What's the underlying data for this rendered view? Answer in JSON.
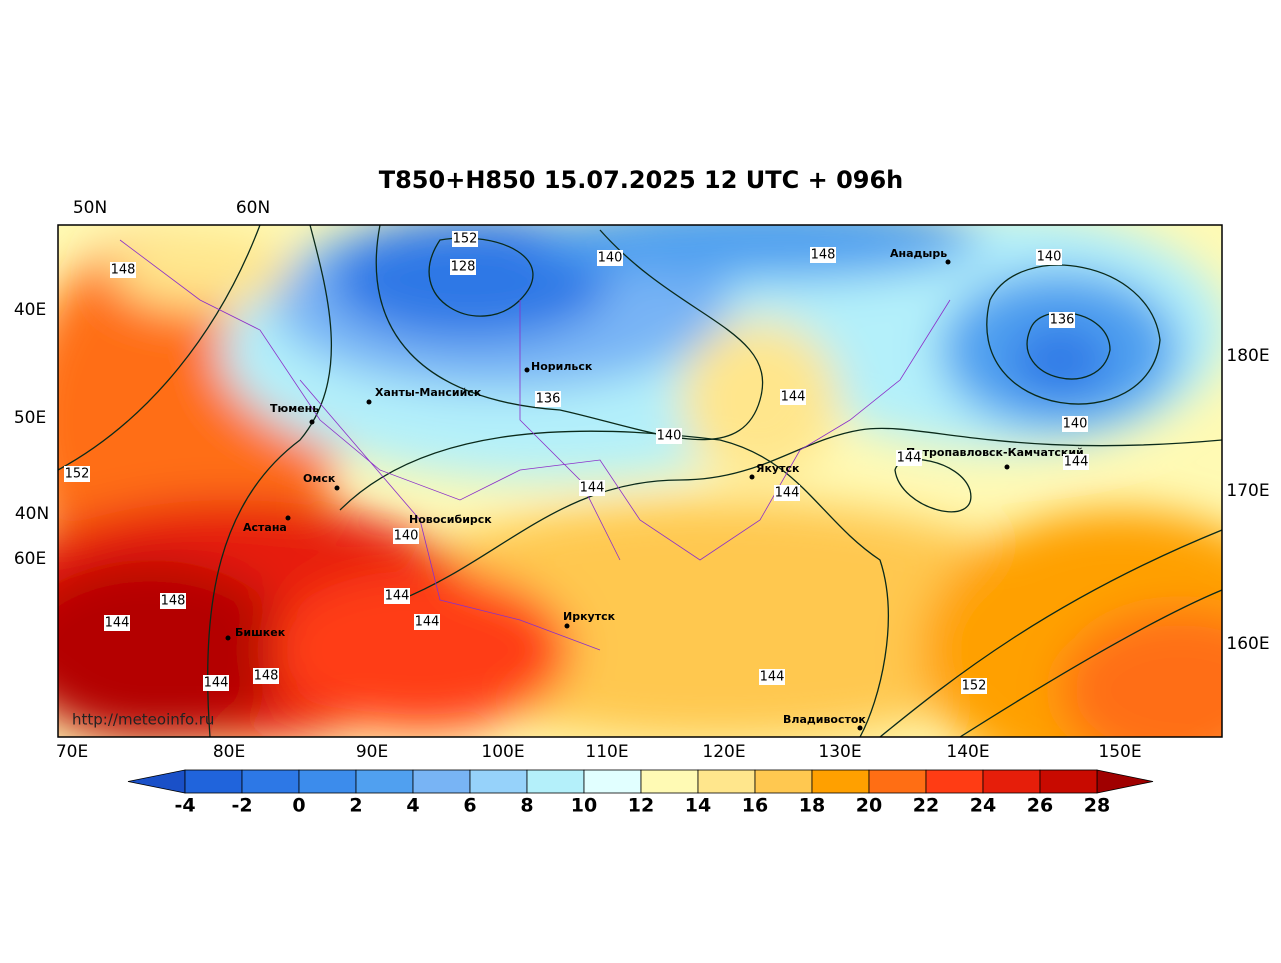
{
  "title": "T850+H850 15.07.2025 12 UTC + 096h",
  "watermark": "http://meteoinfo.ru",
  "lat_labels_top": [
    "50N",
    "60N"
  ],
  "lat_labels_left": [
    "40E",
    "50E",
    "40N",
    "60E"
  ],
  "lat_labels_right": [
    "180E",
    "170E",
    "160E"
  ],
  "lon_labels_bottom": [
    "70E",
    "80E",
    "90E",
    "100E",
    "110E",
    "120E",
    "130E",
    "140E",
    "150E"
  ],
  "cities": [
    "Норильск",
    "Ханты-Мансийск",
    "Тюмень",
    "Омск",
    "Астана",
    "Новосибирск",
    "Бишкек",
    "Иркутск",
    "Якутск",
    "Анадырь",
    "Петропавловск-Камчатский",
    "Владивосток"
  ],
  "contour_labels": [
    148,
    152,
    128,
    140,
    148,
    140,
    136,
    140,
    144,
    144,
    136,
    140,
    144,
    144,
    152,
    140,
    144,
    144,
    148,
    144,
    144,
    148,
    144,
    144,
    152
  ],
  "colorbar": {
    "ticks": [
      -4,
      -2,
      0,
      2,
      4,
      6,
      8,
      10,
      12,
      14,
      16,
      18,
      20,
      22,
      24,
      26,
      28
    ],
    "colors": [
      "#2064dc",
      "#2d78e6",
      "#3c8cec",
      "#50a0f0",
      "#78b4f5",
      "#96d2fa",
      "#b4f0fa",
      "#e1ffff",
      "#fffab4",
      "#ffe68c",
      "#ffc850",
      "#ffa000",
      "#ff6e14",
      "#ff3c14",
      "#e61e0a",
      "#c80a00"
    ],
    "under": "#1a50c8",
    "over": "#a00000"
  }
}
